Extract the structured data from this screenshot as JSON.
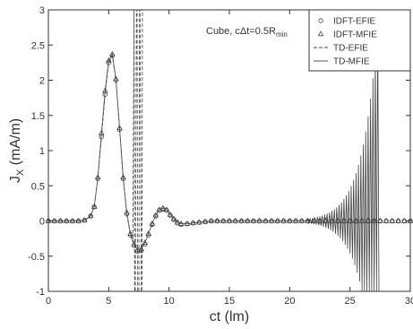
{
  "chart_data": {
    "type": "line",
    "title": "",
    "xlabel": "ct (lm)",
    "ylabel_main": "J",
    "ylabel_sub": "X",
    "ylabel_unit": " (mA/m)",
    "xlim": [
      0,
      30
    ],
    "ylim": [
      -1,
      3
    ],
    "xticks": [
      0,
      5,
      10,
      15,
      20,
      25,
      30
    ],
    "yticks": [
      -1,
      -0.5,
      0,
      0.5,
      1,
      1.5,
      2,
      2.5,
      3
    ],
    "grid": false,
    "legend_position": "top-right",
    "annotation": {
      "main": "Cube, cΔt=0.5R",
      "sub": "min"
    },
    "series": [
      {
        "name": "IDFT-EFIE",
        "marker": "circle",
        "x": [
          0,
          0.5,
          1,
          1.5,
          2,
          2.5,
          3,
          3.5,
          3.8,
          4.1,
          4.4,
          4.7,
          5.0,
          5.3,
          5.6,
          5.9,
          6.2,
          6.5,
          6.8,
          7.1,
          7.4,
          7.7,
          8.0,
          8.3,
          8.6,
          8.9,
          9.2,
          9.5,
          9.8,
          10.1,
          10.4,
          10.7,
          11.0,
          11.5,
          12,
          12.5,
          13,
          13.5,
          14,
          14.5,
          15,
          15.5,
          16,
          16.5,
          17,
          17.5,
          18,
          18.5,
          19,
          19.5,
          20,
          20.5,
          21,
          21.5,
          22,
          22.5,
          23,
          23.5,
          24,
          24.5,
          25,
          25.5,
          26,
          26.5,
          27,
          27.5,
          28,
          28.5,
          29,
          29.5,
          30
        ],
        "y": [
          0,
          0,
          0,
          0,
          0,
          0,
          0.01,
          0.07,
          0.2,
          0.6,
          1.2,
          1.8,
          2.25,
          2.35,
          2.0,
          1.3,
          0.6,
          0.1,
          -0.2,
          -0.35,
          -0.43,
          -0.42,
          -0.33,
          -0.2,
          -0.05,
          0.07,
          0.15,
          0.17,
          0.15,
          0.08,
          0.02,
          -0.03,
          -0.05,
          -0.04,
          -0.03,
          -0.02,
          -0.01,
          0,
          0,
          0,
          0,
          0,
          0,
          0,
          0,
          0,
          0,
          0,
          0,
          0,
          0,
          0,
          0,
          0,
          0,
          0,
          0,
          0,
          0,
          0,
          0,
          0,
          0,
          0,
          0,
          0,
          0,
          0,
          0,
          0,
          0
        ]
      },
      {
        "name": "IDFT-MFIE",
        "marker": "triangle",
        "x": [
          0,
          0.5,
          1,
          1.5,
          2,
          2.5,
          3,
          3.5,
          3.8,
          4.1,
          4.4,
          4.7,
          5.0,
          5.3,
          5.6,
          5.9,
          6.2,
          6.5,
          6.8,
          7.1,
          7.4,
          7.7,
          8.0,
          8.3,
          8.6,
          8.9,
          9.2,
          9.5,
          9.8,
          10.1,
          10.4,
          10.7,
          11.0,
          11.5,
          12,
          12.5,
          13,
          13.5,
          14,
          14.5,
          15,
          15.5,
          16,
          16.5,
          17,
          17.5,
          18,
          18.5,
          19,
          19.5,
          20,
          20.5,
          21,
          21.5,
          22,
          22.5,
          23,
          23.5,
          24,
          24.5,
          25,
          25.5,
          26,
          26.5,
          27,
          27.5,
          28,
          28.5,
          29,
          29.5,
          30
        ],
        "y": [
          0,
          0,
          0,
          0,
          0,
          0,
          0.01,
          0.07,
          0.2,
          0.62,
          1.25,
          1.85,
          2.28,
          2.37,
          2.02,
          1.32,
          0.62,
          0.12,
          -0.18,
          -0.33,
          -0.41,
          -0.4,
          -0.31,
          -0.18,
          -0.04,
          0.08,
          0.16,
          0.18,
          0.16,
          0.09,
          0.03,
          -0.02,
          -0.04,
          -0.04,
          -0.03,
          -0.02,
          -0.01,
          0,
          0,
          0,
          0,
          0,
          0,
          0,
          0,
          0,
          0,
          0,
          0,
          0,
          0,
          0,
          0,
          0,
          0,
          0,
          0,
          0,
          0,
          0,
          0,
          0,
          0,
          0,
          0,
          0,
          0,
          0,
          0,
          0,
          0
        ]
      },
      {
        "name": "TD-EFIE",
        "line_style": "dashed",
        "x": [
          0,
          0.5,
          1,
          1.5,
          2,
          2.5,
          3,
          3.5,
          3.8,
          4.1,
          4.4,
          4.7,
          5.0,
          5.3,
          5.6,
          5.9,
          6.2,
          6.5,
          6.8,
          7.0,
          7.1,
          7.15,
          7.2,
          7.3,
          7.35,
          7.4,
          7.5,
          7.55,
          7.6,
          7.7,
          7.75,
          7.8
        ],
        "y": [
          0,
          0,
          0,
          0,
          0,
          0,
          0.01,
          0.07,
          0.2,
          0.6,
          1.2,
          1.8,
          2.25,
          2.35,
          2.0,
          1.3,
          0.6,
          0.1,
          -0.2,
          -0.3,
          3,
          -1,
          -1,
          3,
          3,
          -1,
          -1,
          3,
          3,
          -1,
          -1,
          3
        ]
      },
      {
        "name": "TD-MFIE",
        "line_style": "solid",
        "growth": {
          "start_x": 21.5,
          "peak_x": 27.4,
          "peak_amplitude": 3.0,
          "tail_amplitude": 0.03,
          "period": 0.2
        },
        "x": [
          0,
          0.5,
          1,
          1.5,
          2,
          2.5,
          3,
          3.5,
          3.8,
          4.1,
          4.4,
          4.7,
          5.0,
          5.3,
          5.6,
          5.9,
          6.2,
          6.5,
          6.8,
          7.1,
          7.4,
          7.7,
          8.0,
          8.3,
          8.6,
          8.9,
          9.2,
          9.5,
          9.8,
          10.1,
          10.4,
          10.7,
          11.0,
          11.5,
          12,
          13,
          14,
          15,
          16,
          17,
          18,
          19,
          20,
          21,
          21.5
        ],
        "y": [
          0,
          0,
          0,
          0,
          0,
          0,
          0.01,
          0.07,
          0.2,
          0.62,
          1.25,
          1.85,
          2.28,
          2.37,
          2.02,
          1.32,
          0.62,
          0.12,
          -0.18,
          -0.33,
          -0.41,
          -0.4,
          -0.31,
          -0.18,
          -0.04,
          0.08,
          0.16,
          0.18,
          0.16,
          0.09,
          0.03,
          -0.02,
          -0.04,
          -0.04,
          -0.03,
          -0.01,
          0,
          0,
          0,
          0,
          0,
          0,
          0,
          0,
          0
        ]
      }
    ]
  }
}
